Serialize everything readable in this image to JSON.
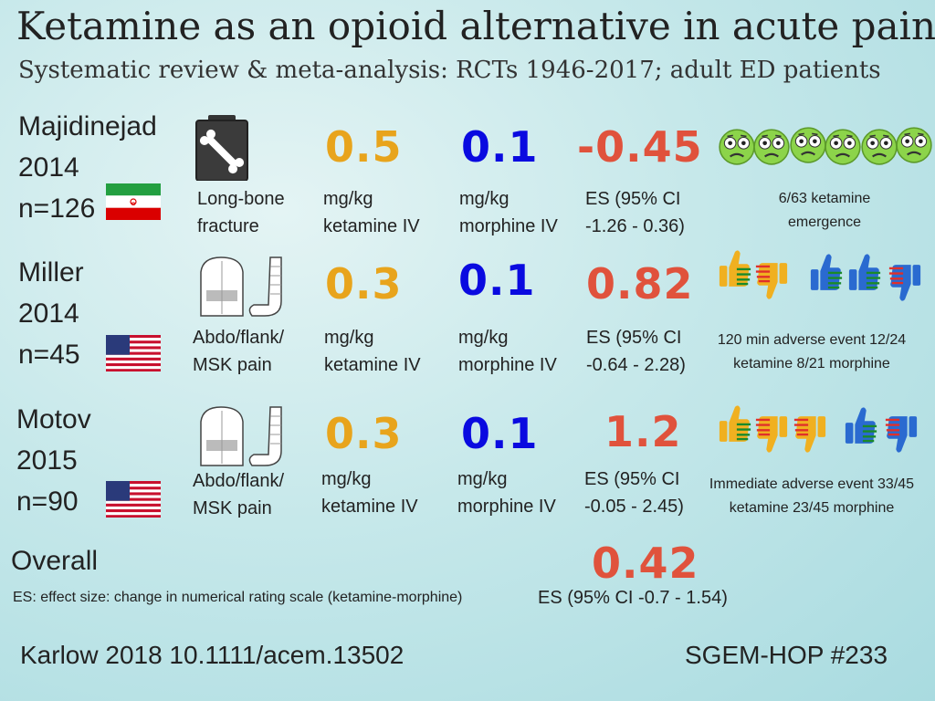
{
  "header": {
    "title": "Ketamine as an opioid alternative in acute pain",
    "subtitle": "Systematic review & meta-analysis: RCTs 1946-2017; adult ED patients"
  },
  "colors": {
    "ketamine_dose": "#e8a41c",
    "morphine_dose": "#0a0ae0",
    "effect_size": "#e0523c"
  },
  "studies": [
    {
      "author": "Majidinejad",
      "year": "2014",
      "n": "n=126",
      "flag": "iran-flag-icon",
      "icon": "bone-xray-icon",
      "condition_line1": "Long-bone",
      "condition_line2": "fracture",
      "ketamine_dose": "0.5",
      "ketamine_unit": "mg/kg",
      "ketamine_route": "ketamine IV",
      "morphine_dose": "0.1",
      "morphine_unit": "mg/kg",
      "morphine_route": "morphine IV",
      "es": "-0.45",
      "ci_line1": "ES (95% CI",
      "ci_line2": "-1.26 - 0.36)",
      "ae_icon": "dizzy-face-icon",
      "ae_line1": "6/63 ketamine",
      "ae_line2": "emergence"
    },
    {
      "author": "Miller",
      "year": "2014",
      "n": "n=45",
      "flag": "us-flag-icon",
      "icon": "torso-and-arm-icon",
      "condition_line1": "Abdo/flank/",
      "condition_line2": "MSK pain",
      "ketamine_dose": "0.3",
      "ketamine_unit": "mg/kg",
      "ketamine_route": "ketamine IV",
      "morphine_dose": "0.1",
      "morphine_unit": "mg/kg",
      "morphine_route": "morphine IV",
      "es": "0.82",
      "ci_line1": "ES (95% CI",
      "ci_line2": "-0.64 - 2.28)",
      "ae_icon": "thumbs-icon",
      "ae_line1": "120 min adverse event 12/24",
      "ae_line2": "ketamine 8/21 morphine"
    },
    {
      "author": "Motov",
      "year": "2015",
      "n": "n=90",
      "flag": "us-flag-icon",
      "icon": "torso-and-arm-icon",
      "condition_line1": "Abdo/flank/",
      "condition_line2": "MSK pain",
      "ketamine_dose": "0.3",
      "ketamine_unit": "mg/kg",
      "ketamine_route": "ketamine IV",
      "morphine_dose": "0.1",
      "morphine_unit": "mg/kg",
      "morphine_route": "morphine IV",
      "es": "1.2",
      "ci_line1": "ES (95% CI",
      "ci_line2": "-0.05 - 2.45)",
      "ae_icon": "thumbs-icon",
      "ae_line1": "Immediate adverse event 33/45",
      "ae_line2": "ketamine 23/45 morphine"
    }
  ],
  "overall": {
    "label": "Overall",
    "es": "0.42",
    "ci": "ES (95% CI -0.7 - 1.54)",
    "definition": "ES: effect size: change in numerical rating scale (ketamine-morphine)"
  },
  "footer": {
    "citation": "Karlow 2018 10.1111/acem.13502",
    "episode": "SGEM-HOP #233"
  }
}
